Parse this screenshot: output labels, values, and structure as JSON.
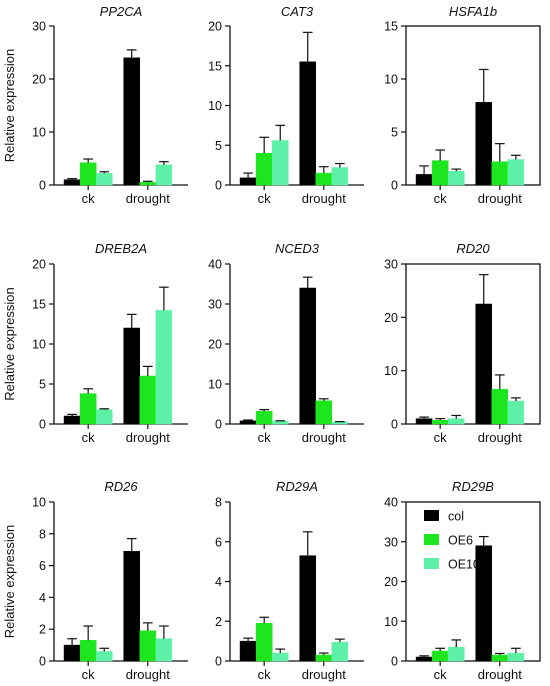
{
  "figure": {
    "ylabel": "Relative expression",
    "categories": [
      "ck",
      "drought"
    ],
    "legend": [
      "col",
      "OE6",
      "OE10"
    ],
    "colors": {
      "col": "#000000",
      "OE6": "#1ee61e",
      "OE10": "#5ff0a8"
    }
  },
  "chart_data": [
    {
      "type": "bar",
      "title": "PP2CA",
      "categories": [
        "ck",
        "drought"
      ],
      "ylim": [
        0,
        30
      ],
      "yticks": [
        0,
        10,
        20,
        30
      ],
      "series": [
        {
          "name": "col",
          "values": [
            1.0,
            24.0
          ],
          "errors": [
            0.2,
            1.5
          ]
        },
        {
          "name": "OE6",
          "values": [
            4.2,
            0.5
          ],
          "errors": [
            0.7,
            0.2
          ]
        },
        {
          "name": "OE10",
          "values": [
            2.2,
            3.8
          ],
          "errors": [
            0.3,
            0.6
          ]
        }
      ]
    },
    {
      "type": "bar",
      "title": "CAT3",
      "categories": [
        "ck",
        "drought"
      ],
      "ylim": [
        0,
        20
      ],
      "yticks": [
        0,
        5,
        10,
        15,
        20
      ],
      "series": [
        {
          "name": "col",
          "values": [
            0.9,
            15.5
          ],
          "errors": [
            0.6,
            3.7
          ]
        },
        {
          "name": "OE6",
          "values": [
            4.0,
            1.5
          ],
          "errors": [
            2.0,
            0.8
          ]
        },
        {
          "name": "OE10",
          "values": [
            5.6,
            2.2
          ],
          "errors": [
            1.9,
            0.5
          ]
        }
      ]
    },
    {
      "type": "bar",
      "title": "HSFA1b",
      "categories": [
        "ck",
        "drought"
      ],
      "ylim": [
        0,
        15
      ],
      "yticks": [
        0,
        5,
        10,
        15
      ],
      "series": [
        {
          "name": "col",
          "values": [
            1.0,
            7.8
          ],
          "errors": [
            0.8,
            3.1
          ]
        },
        {
          "name": "OE6",
          "values": [
            2.3,
            2.2
          ],
          "errors": [
            1.0,
            1.7
          ]
        },
        {
          "name": "OE10",
          "values": [
            1.3,
            2.4
          ],
          "errors": [
            0.2,
            0.4
          ]
        }
      ]
    },
    {
      "type": "bar",
      "title": "DREB2A",
      "categories": [
        "ck",
        "drought"
      ],
      "ylim": [
        0,
        20
      ],
      "yticks": [
        0,
        5,
        10,
        15,
        20
      ],
      "series": [
        {
          "name": "col",
          "values": [
            1.0,
            12.0
          ],
          "errors": [
            0.2,
            1.7
          ]
        },
        {
          "name": "OE6",
          "values": [
            3.8,
            6.0
          ],
          "errors": [
            0.6,
            1.2
          ]
        },
        {
          "name": "OE10",
          "values": [
            1.8,
            14.2
          ],
          "errors": [
            0.1,
            2.9
          ]
        }
      ]
    },
    {
      "type": "bar",
      "title": "NCED3",
      "categories": [
        "ck",
        "drought"
      ],
      "ylim": [
        0,
        40
      ],
      "yticks": [
        0,
        10,
        20,
        30,
        40
      ],
      "series": [
        {
          "name": "col",
          "values": [
            0.8,
            34.0
          ],
          "errors": [
            0.2,
            2.7
          ]
        },
        {
          "name": "OE6",
          "values": [
            3.2,
            5.8
          ],
          "errors": [
            0.4,
            0.5
          ]
        },
        {
          "name": "OE10",
          "values": [
            0.7,
            0.5
          ],
          "errors": [
            0.1,
            0.1
          ]
        }
      ]
    },
    {
      "type": "bar",
      "title": "RD20",
      "categories": [
        "ck",
        "drought"
      ],
      "ylim": [
        0,
        30
      ],
      "yticks": [
        0,
        10,
        20,
        30
      ],
      "series": [
        {
          "name": "col",
          "values": [
            1.0,
            22.5
          ],
          "errors": [
            0.3,
            5.5
          ]
        },
        {
          "name": "OE6",
          "values": [
            0.7,
            6.5
          ],
          "errors": [
            0.3,
            2.7
          ]
        },
        {
          "name": "OE10",
          "values": [
            1.0,
            4.3
          ],
          "errors": [
            0.6,
            0.6
          ]
        }
      ]
    },
    {
      "type": "bar",
      "title": "RD26",
      "categories": [
        "ck",
        "drought"
      ],
      "ylim": [
        0,
        10
      ],
      "yticks": [
        0,
        2,
        4,
        6,
        8,
        10
      ],
      "series": [
        {
          "name": "col",
          "values": [
            1.0,
            6.9
          ],
          "errors": [
            0.4,
            0.8
          ]
        },
        {
          "name": "OE6",
          "values": [
            1.3,
            1.9
          ],
          "errors": [
            0.9,
            0.5
          ]
        },
        {
          "name": "OE10",
          "values": [
            0.6,
            1.4
          ],
          "errors": [
            0.2,
            0.8
          ]
        }
      ]
    },
    {
      "type": "bar",
      "title": "RD29A",
      "categories": [
        "ck",
        "drought"
      ],
      "ylim": [
        0,
        8
      ],
      "yticks": [
        0,
        2,
        4,
        6,
        8
      ],
      "series": [
        {
          "name": "col",
          "values": [
            1.0,
            5.3
          ],
          "errors": [
            0.15,
            1.2
          ]
        },
        {
          "name": "OE6",
          "values": [
            1.9,
            0.3
          ],
          "errors": [
            0.3,
            0.1
          ]
        },
        {
          "name": "OE10",
          "values": [
            0.4,
            0.95
          ],
          "errors": [
            0.2,
            0.15
          ]
        }
      ]
    },
    {
      "type": "bar",
      "title": "RD29B",
      "categories": [
        "ck",
        "drought"
      ],
      "ylim": [
        0,
        40
      ],
      "yticks": [
        0,
        10,
        20,
        30,
        40
      ],
      "series": [
        {
          "name": "col",
          "values": [
            1.0,
            29.0
          ],
          "errors": [
            0.3,
            2.3
          ]
        },
        {
          "name": "OE6",
          "values": [
            2.5,
            1.5
          ],
          "errors": [
            0.7,
            0.4
          ]
        },
        {
          "name": "OE10",
          "values": [
            3.5,
            2.0
          ],
          "errors": [
            1.8,
            1.2
          ]
        }
      ]
    }
  ]
}
